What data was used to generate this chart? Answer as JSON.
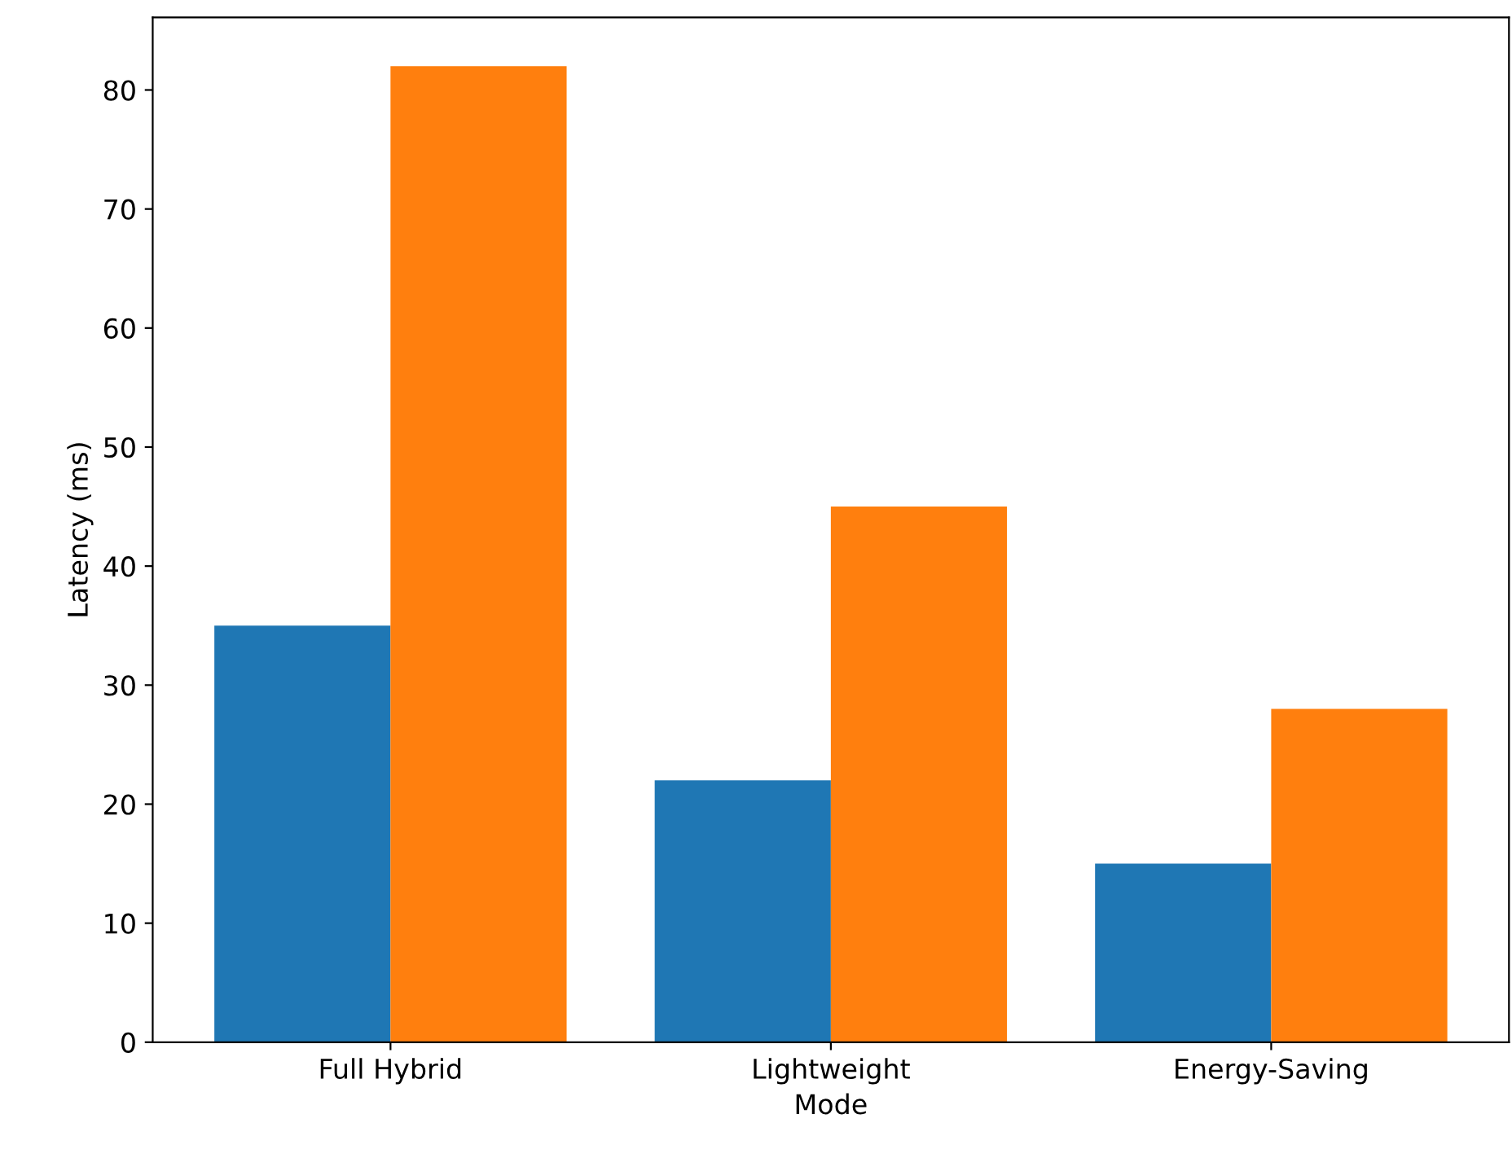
{
  "chart_data": {
    "type": "bar",
    "xlabel": "Mode",
    "ylabel": "Latency (ms)",
    "categories": [
      "Full Hybrid",
      "Lightweight",
      "Energy-Saving"
    ],
    "series": [
      {
        "color": "#1f77b4",
        "values": [
          35,
          22,
          15
        ]
      },
      {
        "color": "#ff7f0e",
        "values": [
          82,
          45,
          28
        ]
      }
    ],
    "ylim": [
      0,
      86.1
    ],
    "yticks": [
      0,
      10,
      20,
      30,
      40,
      50,
      60,
      70,
      80
    ],
    "grid": false,
    "legend": false
  }
}
